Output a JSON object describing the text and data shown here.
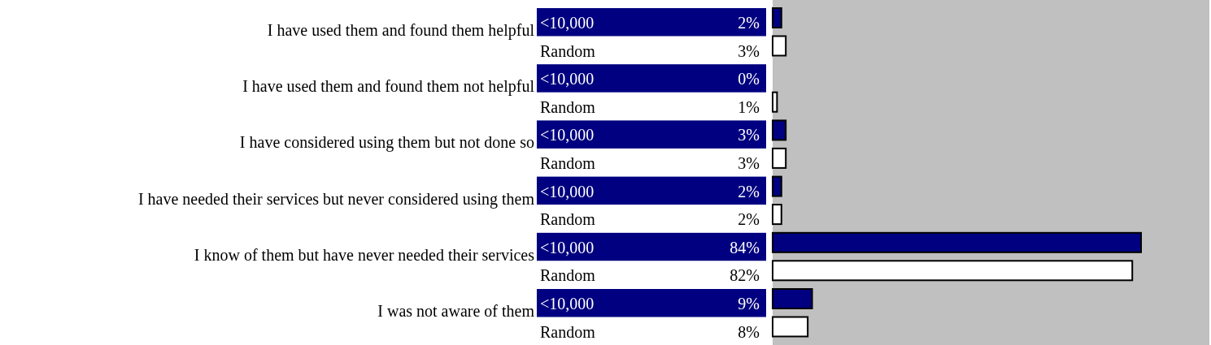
{
  "chart_data": {
    "type": "bar",
    "orientation": "horizontal",
    "categories": [
      "I have used them and found them helpful",
      "I have used them and found them not helpful",
      "I have considered using them but not done so",
      "I have needed their services but never considered using them",
      "I know of them but have never needed their services",
      "I was not aware of them"
    ],
    "series": [
      {
        "name": "<10,000",
        "color": "#000080",
        "values": [
          2,
          0,
          3,
          2,
          84,
          9
        ],
        "value_labels": [
          "2%",
          "0%",
          "3%",
          "2%",
          "84%",
          "9%"
        ]
      },
      {
        "name": "Random",
        "color": "#ffffff",
        "values": [
          3,
          1,
          3,
          2,
          82,
          8
        ],
        "value_labels": [
          "3%",
          "1%",
          "3%",
          "2%",
          "82%",
          "8%"
        ]
      }
    ]
  }
}
